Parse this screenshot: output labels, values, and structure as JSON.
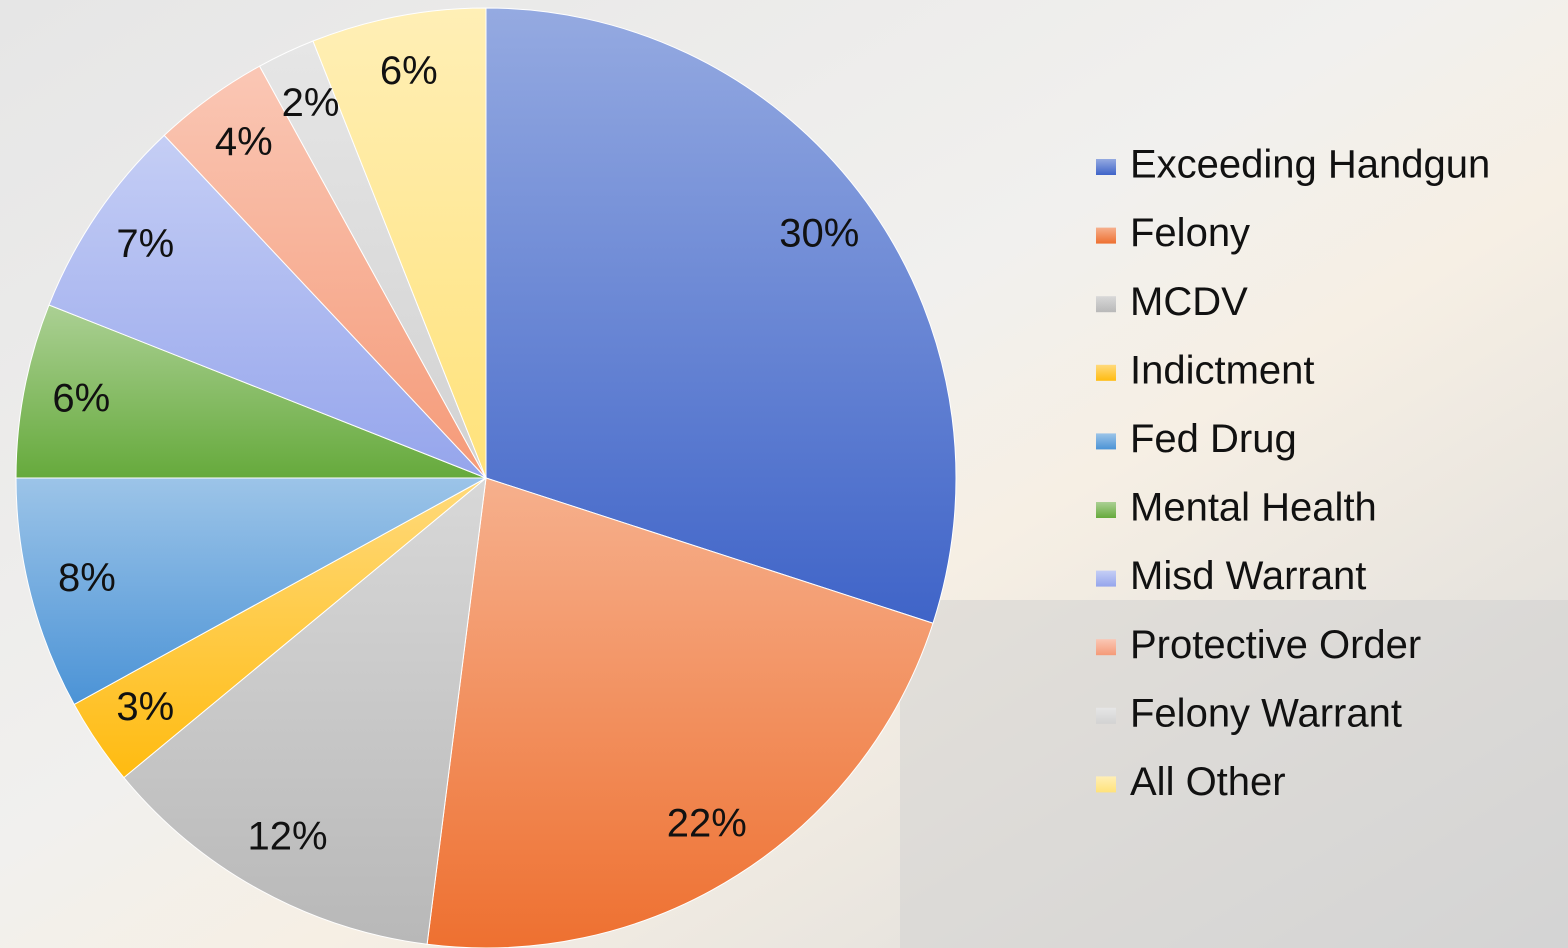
{
  "chart_data": {
    "type": "pie",
    "categories": [
      "Exceeding Handgun",
      "Felony",
      "MCDV",
      "Indictment",
      "Fed Drug",
      "Mental Health",
      "Misd Warrant",
      "Protective Order",
      "Felony Warrant",
      "All Other"
    ],
    "values": [
      30,
      22,
      12,
      3,
      8,
      6,
      7,
      4,
      2,
      6
    ],
    "value_labels": [
      "30%",
      "22%",
      "12%",
      "3%",
      "8%",
      "6%",
      "7%",
      "4%",
      "2%",
      "6%"
    ],
    "colors": [
      "#3f64c8",
      "#ee7030",
      "#b8b8b8",
      "#ffbb10",
      "#4b93d6",
      "#66aa3c",
      "#95a5ec",
      "#f59a78",
      "#d2d2d2",
      "#ffe27a"
    ],
    "legend": "right"
  }
}
